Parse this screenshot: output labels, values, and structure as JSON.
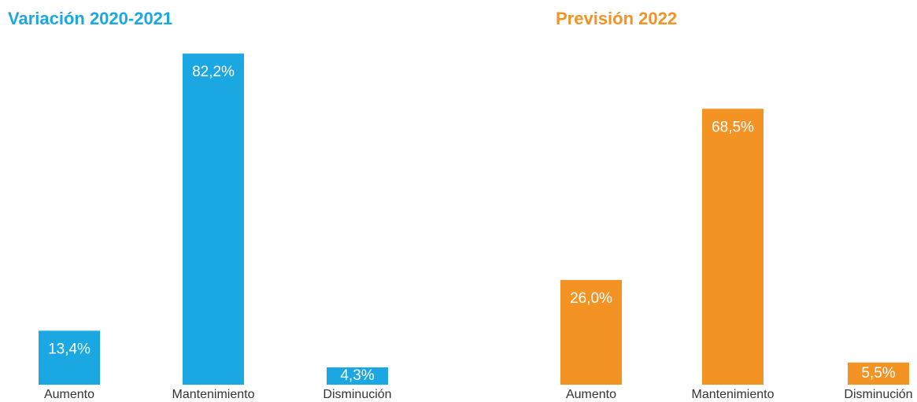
{
  "chart_data": [
    {
      "type": "bar",
      "title": "Variación 2020-2021",
      "color": "#1ba8e2",
      "categories": [
        "Aumento",
        "Mantenimiento",
        "Disminución"
      ],
      "values": [
        13.4,
        82.2,
        4.3
      ],
      "value_labels": [
        "13,4%",
        "82,2%",
        "4,3%"
      ]
    },
    {
      "type": "bar",
      "title": "Previsión 2022",
      "color": "#f39324",
      "categories": [
        "Aumento",
        "Mantenimiento",
        "Disminución"
      ],
      "values": [
        26.0,
        68.5,
        5.5
      ],
      "value_labels": [
        "26,0%",
        "68,5%",
        "5,5%"
      ]
    }
  ]
}
